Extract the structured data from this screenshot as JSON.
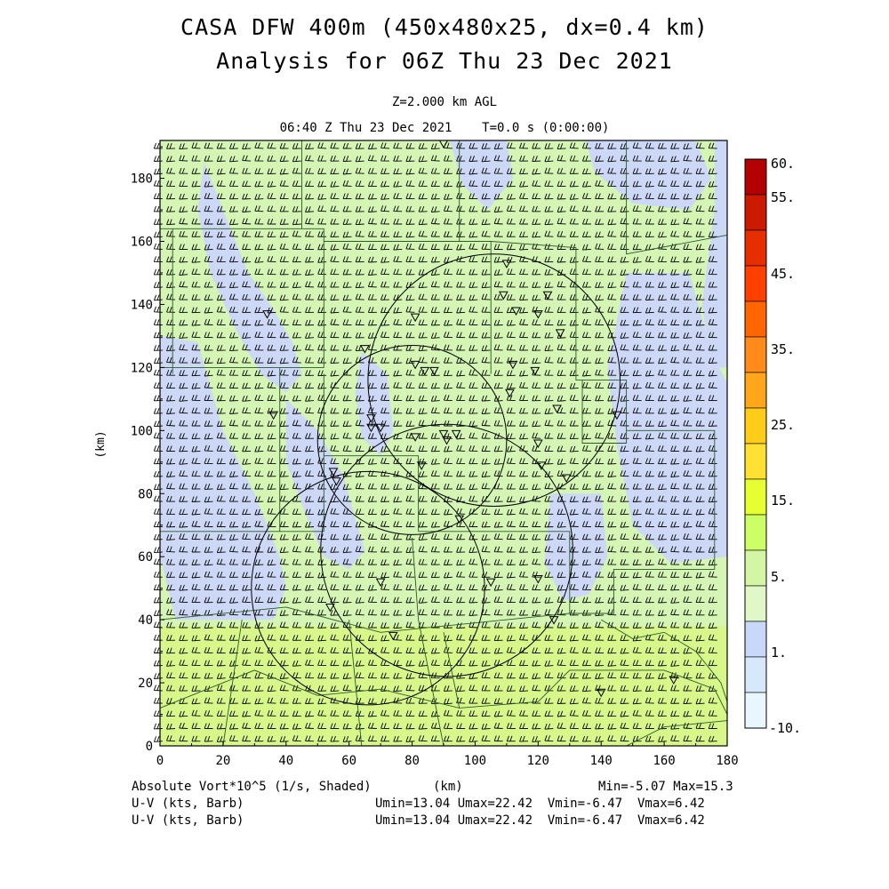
{
  "header": {
    "title_line1": "CASA DFW 400m (450x480x25, dx=0.4 km)",
    "title_line2": "Analysis for 06Z Thu 23 Dec 2021",
    "level": "Z=2.000 km AGL",
    "valid_time": "06:40 Z Thu 23 Dec 2021    T=0.0 s (0:00:00)"
  },
  "footer": {
    "field1": "Absolute Vort*10^5 (1/s, Shaded)",
    "xunit": "(km)",
    "minmax": "Min=-5.07 Max=15.3",
    "field2": "U-V (kts, Barb)",
    "field3": "U-V (kts, Barb)",
    "stats2": "Umin=13.04 Umax=22.42  Vmin=-6.47  Vmax=6.42",
    "stats3": "Umin=13.04 Umax=22.42  Vmin=-6.47  Vmax=6.42"
  },
  "colors": {
    "bg_green": "#d4f5b3",
    "light_blue": "#ccd8f5",
    "yellow_green": "#d8f78a",
    "barb": "#000000",
    "boundary": "#2a5a2a"
  },
  "chart_data": {
    "type": "heatmap",
    "xlabel": "(km)",
    "ylabel": "(km)",
    "xlim": [
      0,
      180
    ],
    "ylim": [
      0,
      192
    ],
    "xticks": [
      "0",
      "20",
      "40",
      "60",
      "80",
      "100",
      "120",
      "140",
      "160",
      "180"
    ],
    "yticks": [
      "0",
      "20",
      "40",
      "60",
      "80",
      "100",
      "120",
      "140",
      "160",
      "180"
    ],
    "colorbar": {
      "labels": [
        "60.",
        "55.",
        "45.",
        "35.",
        "25.",
        "15.",
        "5.",
        "1.",
        "-10."
      ],
      "colors": [
        "#b30000",
        "#cc1a00",
        "#e62e00",
        "#ff4000",
        "#ff6600",
        "#ff8c1a",
        "#ffa61a",
        "#ffcc1a",
        "#ffe033",
        "#e6ff33",
        "#ccff66",
        "#d4f5a3",
        "#e0f7c8",
        "#c8d8f8",
        "#d6e8fa",
        "#e8f6fd"
      ]
    },
    "radar_rings": [
      {
        "cx": 66,
        "cy": 50,
        "r": 37
      },
      {
        "cx": 91,
        "cy": 62,
        "r": 40
      },
      {
        "cx": 80,
        "cy": 97,
        "r": 30
      },
      {
        "cx": 106,
        "cy": 116,
        "r": 40
      }
    ],
    "sites": [
      [
        90,
        191
      ],
      [
        34,
        137
      ],
      [
        110,
        153
      ],
      [
        109,
        143
      ],
      [
        123,
        143
      ],
      [
        113,
        138
      ],
      [
        120,
        137
      ],
      [
        81,
        136
      ],
      [
        65,
        126
      ],
      [
        127,
        131
      ],
      [
        81,
        121
      ],
      [
        84,
        119
      ],
      [
        87,
        119
      ],
      [
        112,
        121
      ],
      [
        119,
        119
      ],
      [
        111,
        112
      ],
      [
        126,
        107
      ],
      [
        145,
        105
      ],
      [
        36,
        105
      ],
      [
        67,
        104
      ],
      [
        67,
        101
      ],
      [
        70,
        101
      ],
      [
        81,
        98
      ],
      [
        91,
        97
      ],
      [
        94,
        99
      ],
      [
        90,
        99
      ],
      [
        120,
        96
      ],
      [
        83,
        89
      ],
      [
        121,
        89
      ],
      [
        129,
        85
      ],
      [
        55,
        87
      ],
      [
        56,
        84
      ],
      [
        95,
        72
      ],
      [
        70,
        52
      ],
      [
        105,
        52
      ],
      [
        120,
        53
      ],
      [
        54,
        44
      ],
      [
        74,
        35
      ],
      [
        125,
        40
      ],
      [
        140,
        17
      ],
      [
        163,
        21
      ]
    ]
  }
}
